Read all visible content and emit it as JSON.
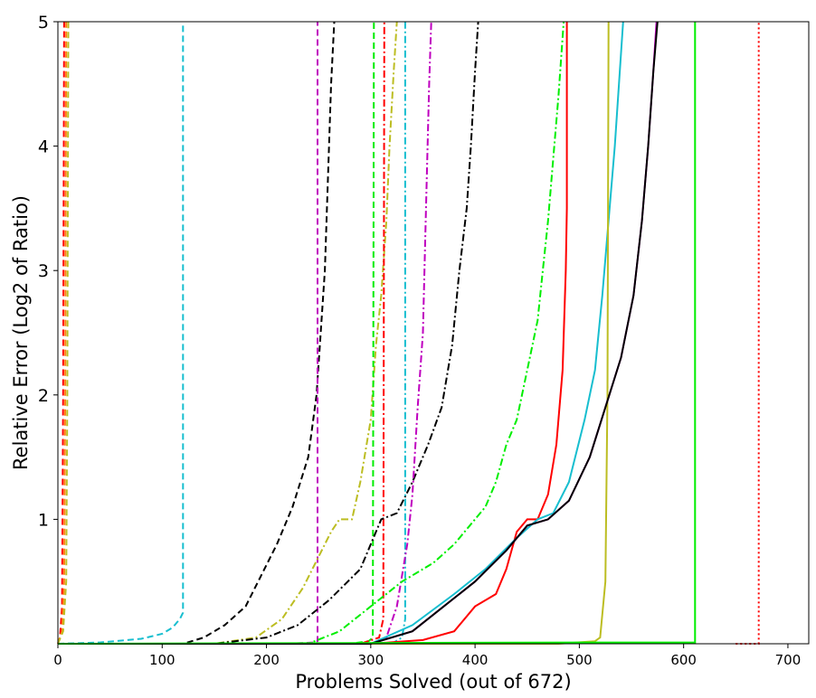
{
  "chart_data": {
    "type": "line",
    "title": "",
    "xlabel": "Problems Solved (out of 672)",
    "ylabel": "Relative Error (Log2 of Ratio)",
    "xlim": [
      0,
      720
    ],
    "ylim": [
      0,
      5
    ],
    "xticks": [
      0,
      100,
      200,
      300,
      400,
      500,
      600,
      700
    ],
    "yticks": [
      1,
      2,
      3,
      4,
      5
    ],
    "xtick_labels": [
      "0",
      "100",
      "200",
      "300",
      "400",
      "500",
      "600",
      "700"
    ],
    "ytick_labels": [
      "1",
      "2",
      "3",
      "4",
      "5"
    ],
    "grid": false,
    "legend": "none",
    "series": [
      {
        "color": "#ff0000",
        "dash": "dashed",
        "points": [
          [
            0,
            0
          ],
          [
            2,
            0.05
          ],
          [
            4,
            0.3
          ],
          [
            5,
            2
          ],
          [
            6,
            5
          ]
        ]
      },
      {
        "color": "#ff7f0e",
        "dash": "dashed",
        "points": [
          [
            0,
            0
          ],
          [
            4,
            0.1
          ],
          [
            6,
            0.5
          ],
          [
            7,
            2
          ],
          [
            8,
            5
          ]
        ]
      },
      {
        "color": "#bcbd22",
        "dash": "dashed",
        "points": [
          [
            0,
            0
          ],
          [
            5,
            0.1
          ],
          [
            8,
            0.5
          ],
          [
            9,
            2
          ],
          [
            10,
            5
          ]
        ]
      },
      {
        "color": "#17becf",
        "dash": "dashed",
        "points": [
          [
            0,
            0
          ],
          [
            40,
            0.01
          ],
          [
            80,
            0.04
          ],
          [
            100,
            0.08
          ],
          [
            110,
            0.13
          ],
          [
            117,
            0.2
          ],
          [
            120,
            0.25
          ],
          [
            120,
            5
          ]
        ]
      },
      {
        "color": "#000000",
        "dash": "dashed",
        "points": [
          [
            0,
            0
          ],
          [
            120,
            0
          ],
          [
            140,
            0.05
          ],
          [
            160,
            0.15
          ],
          [
            180,
            0.3
          ],
          [
            195,
            0.55
          ],
          [
            210,
            0.8
          ],
          [
            225,
            1.1
          ],
          [
            240,
            1.5
          ],
          [
            248,
            2.0
          ],
          [
            252,
            2.5
          ],
          [
            256,
            3.0
          ],
          [
            258,
            3.5
          ],
          [
            260,
            4.0
          ],
          [
            262,
            4.5
          ],
          [
            265,
            5
          ]
        ]
      },
      {
        "color": "#bf00bf",
        "dash": "dashed",
        "points": [
          [
            0,
            0
          ],
          [
            220,
            0
          ],
          [
            245,
            0.01
          ],
          [
            249,
            0.02
          ],
          [
            249,
            5
          ]
        ]
      },
      {
        "color": "#bcbd22",
        "dash": "dashdot",
        "points": [
          [
            0,
            0
          ],
          [
            150,
            0
          ],
          [
            190,
            0.05
          ],
          [
            215,
            0.2
          ],
          [
            235,
            0.45
          ],
          [
            250,
            0.7
          ],
          [
            262,
            0.9
          ],
          [
            270,
            1.0
          ],
          [
            282,
            1.0
          ],
          [
            290,
            1.3
          ],
          [
            300,
            1.8
          ],
          [
            305,
            2.4
          ],
          [
            310,
            2.8
          ],
          [
            315,
            3.4
          ],
          [
            318,
            4.0
          ],
          [
            322,
            4.6
          ],
          [
            325,
            5
          ]
        ]
      },
      {
        "color": "#00ee00",
        "dash": "dashed",
        "points": [
          [
            0,
            0
          ],
          [
            280,
            0
          ],
          [
            298,
            0.02
          ],
          [
            302,
            0.05
          ],
          [
            303,
            5
          ]
        ]
      },
      {
        "color": "#ff0000",
        "dash": "dashdot",
        "points": [
          [
            0,
            0
          ],
          [
            290,
            0
          ],
          [
            308,
            0.05
          ],
          [
            312,
            0.2
          ],
          [
            313,
            5
          ]
        ]
      },
      {
        "color": "#000000",
        "dash": "dashdot",
        "points": [
          [
            0,
            0
          ],
          [
            150,
            0
          ],
          [
            200,
            0.05
          ],
          [
            230,
            0.15
          ],
          [
            260,
            0.35
          ],
          [
            290,
            0.6
          ],
          [
            310,
            1.0
          ],
          [
            325,
            1.05
          ],
          [
            340,
            1.3
          ],
          [
            355,
            1.6
          ],
          [
            368,
            1.9
          ],
          [
            378,
            2.4
          ],
          [
            385,
            3.0
          ],
          [
            392,
            3.5
          ],
          [
            396,
            4.0
          ],
          [
            400,
            4.6
          ],
          [
            403,
            5
          ]
        ]
      },
      {
        "color": "#17becf",
        "dash": "dashdot",
        "points": [
          [
            0,
            0
          ],
          [
            320,
            0
          ],
          [
            330,
            0.05
          ],
          [
            333,
            0.2
          ],
          [
            333,
            5
          ]
        ]
      },
      {
        "color": "#bf00bf",
        "dash": "dashdot",
        "points": [
          [
            0,
            0
          ],
          [
            300,
            0
          ],
          [
            315,
            0.05
          ],
          [
            325,
            0.3
          ],
          [
            335,
            0.8
          ],
          [
            340,
            1.2
          ],
          [
            345,
            1.9
          ],
          [
            350,
            2.5
          ],
          [
            353,
            3.5
          ],
          [
            356,
            4.5
          ],
          [
            358,
            5
          ]
        ]
      },
      {
        "color": "#00ee00",
        "dash": "dashdot",
        "points": [
          [
            0,
            0
          ],
          [
            240,
            0
          ],
          [
            270,
            0.1
          ],
          [
            300,
            0.3
          ],
          [
            330,
            0.5
          ],
          [
            360,
            0.65
          ],
          [
            380,
            0.8
          ],
          [
            395,
            0.95
          ],
          [
            410,
            1.1
          ],
          [
            420,
            1.3
          ],
          [
            430,
            1.6
          ],
          [
            440,
            1.8
          ],
          [
            450,
            2.2
          ],
          [
            460,
            2.6
          ],
          [
            465,
            3.0
          ],
          [
            470,
            3.4
          ],
          [
            474,
            3.8
          ],
          [
            480,
            4.4
          ],
          [
            485,
            5
          ]
        ]
      },
      {
        "color": "#ff0000",
        "dash": "solid",
        "points": [
          [
            0,
            0
          ],
          [
            300,
            0
          ],
          [
            350,
            0.03
          ],
          [
            380,
            0.1
          ],
          [
            400,
            0.3
          ],
          [
            420,
            0.4
          ],
          [
            430,
            0.6
          ],
          [
            440,
            0.9
          ],
          [
            450,
            1.0
          ],
          [
            460,
            1.0
          ],
          [
            470,
            1.2
          ],
          [
            478,
            1.6
          ],
          [
            484,
            2.2
          ],
          [
            487,
            3.0
          ],
          [
            488,
            3.5
          ],
          [
            488,
            5
          ]
        ]
      },
      {
        "color": "#17becf",
        "dash": "solid",
        "points": [
          [
            0,
            0
          ],
          [
            300,
            0
          ],
          [
            340,
            0.15
          ],
          [
            380,
            0.4
          ],
          [
            410,
            0.6
          ],
          [
            440,
            0.85
          ],
          [
            460,
            1.0
          ],
          [
            475,
            1.05
          ],
          [
            490,
            1.3
          ],
          [
            505,
            1.8
          ],
          [
            515,
            2.2
          ],
          [
            522,
            2.8
          ],
          [
            528,
            3.4
          ],
          [
            534,
            4.0
          ],
          [
            538,
            4.5
          ],
          [
            542,
            5
          ]
        ]
      },
      {
        "color": "#bcbd22",
        "dash": "solid",
        "points": [
          [
            0,
            0
          ],
          [
            480,
            0
          ],
          [
            515,
            0.02
          ],
          [
            520,
            0.05
          ],
          [
            525,
            0.5
          ],
          [
            527,
            2.0
          ],
          [
            528,
            5
          ]
        ]
      },
      {
        "color": "#bf00bf",
        "dash": "solid",
        "points": [
          [
            0,
            0
          ],
          [
            300,
            0
          ],
          [
            340,
            0.1
          ],
          [
            370,
            0.3
          ],
          [
            400,
            0.5
          ],
          [
            430,
            0.75
          ],
          [
            450,
            0.95
          ],
          [
            470,
            1.0
          ],
          [
            490,
            1.15
          ],
          [
            510,
            1.5
          ],
          [
            525,
            1.9
          ],
          [
            540,
            2.3
          ],
          [
            552,
            2.8
          ],
          [
            560,
            3.4
          ],
          [
            566,
            4.0
          ],
          [
            571,
            4.6
          ],
          [
            574,
            5
          ]
        ]
      },
      {
        "color": "#000000",
        "dash": "solid",
        "points": [
          [
            0,
            0
          ],
          [
            300,
            0
          ],
          [
            340,
            0.1
          ],
          [
            370,
            0.3
          ],
          [
            400,
            0.5
          ],
          [
            430,
            0.75
          ],
          [
            450,
            0.95
          ],
          [
            470,
            1.0
          ],
          [
            490,
            1.15
          ],
          [
            510,
            1.5
          ],
          [
            525,
            1.9
          ],
          [
            540,
            2.3
          ],
          [
            552,
            2.8
          ],
          [
            560,
            3.4
          ],
          [
            566,
            4.0
          ],
          [
            571,
            4.6
          ],
          [
            575,
            5
          ]
        ]
      },
      {
        "color": "#00ee00",
        "dash": "solid",
        "points": [
          [
            0,
            0
          ],
          [
            500,
            0.01
          ],
          [
            600,
            0.01
          ],
          [
            611,
            0.01
          ],
          [
            611,
            5
          ]
        ]
      },
      {
        "color": "#ff0000",
        "dash": "dotted",
        "points": [
          [
            650,
            0
          ],
          [
            672,
            0
          ],
          [
            672,
            5
          ]
        ]
      }
    ]
  }
}
